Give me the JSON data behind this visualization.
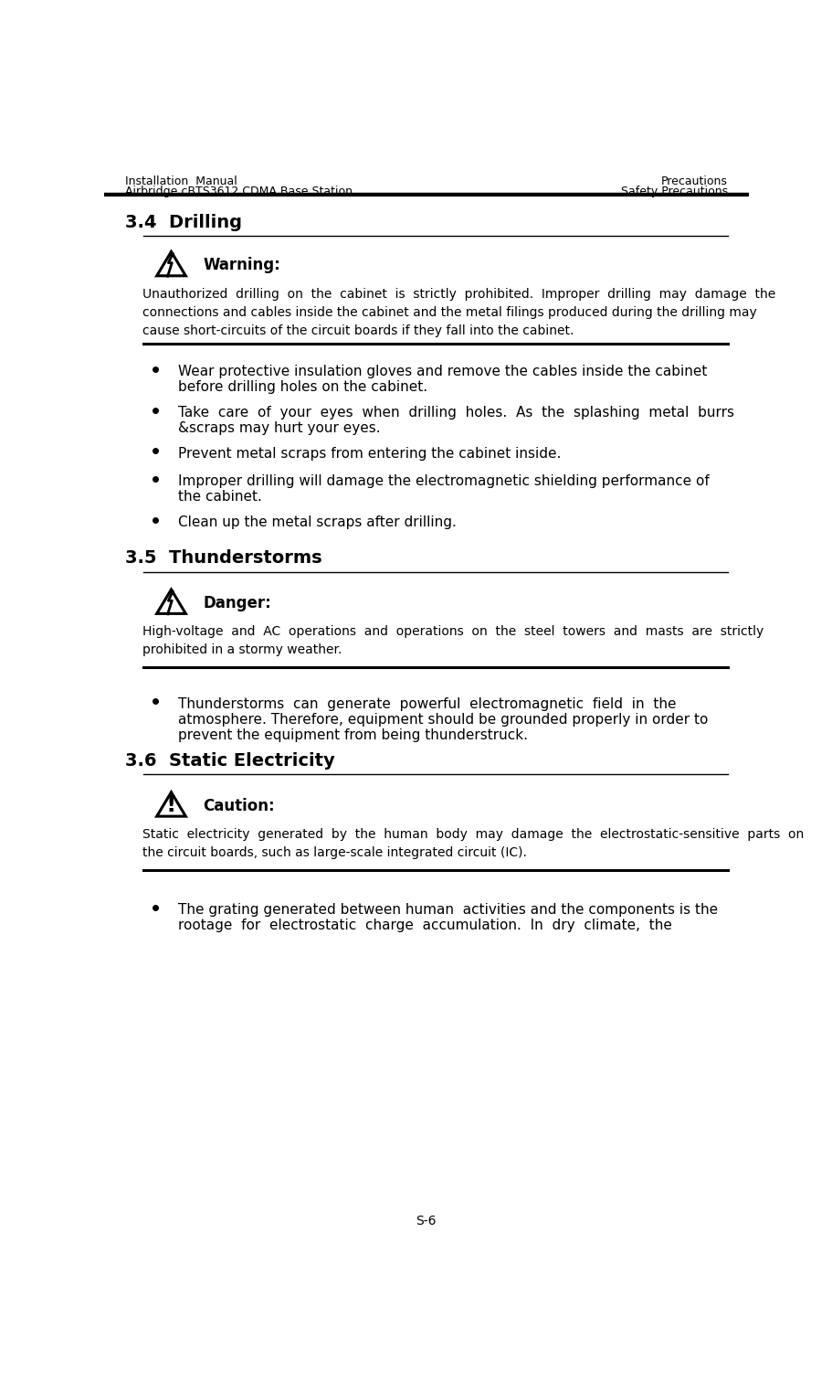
{
  "header_left_line1": "Installation  Manual",
  "header_left_line2": "Airbridge cBTS3612 CDMA Base Station",
  "header_right_line1": "Precautions",
  "header_right_line2": "Safety Precautions",
  "section_34_title": "3.4  Drilling",
  "section_35_title": "3.5  Thunderstorms",
  "section_36_title": "3.6  Static Electricity",
  "warning_label": "Warning:",
  "danger_label": "Danger:",
  "caution_label": "Caution:",
  "page_number": "S-6",
  "bg_color": "#ffffff",
  "text_color": "#000000"
}
